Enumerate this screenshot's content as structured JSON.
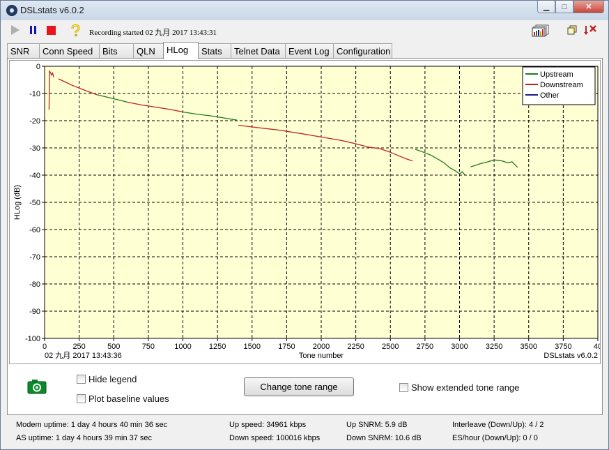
{
  "window": {
    "title": "DSLstats v6.0.2",
    "controls": {
      "minimize": "▁",
      "maximize": "□",
      "close": "✕"
    }
  },
  "toolbar": {
    "recording_status": "Recording started 02 九月 2017 13:43:31",
    "icons": [
      "play-icon",
      "pause-icon",
      "stop-icon",
      "help-icon",
      "chart-icon",
      "restore-icon",
      "exit-icon"
    ],
    "colors": {
      "pause": "#1414b4",
      "stop": "#e8161c",
      "play": "#b0b0b0"
    }
  },
  "tabs": [
    {
      "label": "SNR"
    },
    {
      "label": "Conn Speed"
    },
    {
      "label": "Bits"
    },
    {
      "label": "QLN"
    },
    {
      "label": "HLog",
      "active": true
    },
    {
      "label": "Stats"
    },
    {
      "label": "Telnet Data"
    },
    {
      "label": "Event Log"
    },
    {
      "label": "Configuration"
    }
  ],
  "chart_data": {
    "type": "line",
    "title": "",
    "xlabel": "Tone number",
    "ylabel": "HLog (dB)",
    "xlim": [
      0,
      4000
    ],
    "ylim": [
      -100,
      0
    ],
    "x_ticks": [
      "0",
      "250",
      "500",
      "750",
      "1000",
      "1250",
      "1500",
      "1750",
      "2000",
      "2250",
      "2500",
      "2750",
      "3000",
      "3250",
      "3500",
      "3750",
      "40"
    ],
    "y_ticks": [
      "0",
      "-10",
      "-20",
      "-30",
      "-40",
      "-50",
      "-60",
      "-70",
      "-80",
      "-90",
      "-100"
    ],
    "grid": true,
    "legend_position": "top-right",
    "footer_left": "02 九月 2017 13:43:36",
    "footer_right": "DSLstats v6.0.2",
    "background": "#ffffd4",
    "series": [
      {
        "name": "Upstream",
        "color": "#1f7a1f",
        "segments": [
          [
            [
              380,
              -10.5
            ],
            [
              450,
              -11.3
            ],
            [
              530,
              -12.3
            ],
            [
              600,
              -13.2
            ]
          ],
          [
            [
              1000,
              -16.8
            ],
            [
              1100,
              -17.6
            ],
            [
              1200,
              -18.2
            ],
            [
              1300,
              -19.0
            ],
            [
              1390,
              -19.8
            ]
          ],
          [
            [
              2680,
              -30.5
            ],
            [
              2720,
              -31.2
            ],
            [
              2790,
              -32.6
            ],
            [
              2850,
              -34.3
            ],
            [
              2890,
              -35.6
            ],
            [
              2930,
              -37.3
            ],
            [
              2970,
              -38.4
            ],
            [
              3000,
              -39.5
            ],
            [
              3020,
              -38.8
            ],
            [
              3040,
              -40.0
            ]
          ],
          [
            [
              3080,
              -37.0
            ],
            [
              3150,
              -35.8
            ],
            [
              3200,
              -35.2
            ],
            [
              3250,
              -34.4
            ],
            [
              3300,
              -34.7
            ],
            [
              3350,
              -35.5
            ],
            [
              3380,
              -35.1
            ],
            [
              3420,
              -37.2
            ]
          ]
        ]
      },
      {
        "name": "Downstream",
        "color": "#c0211f",
        "segments": [
          [
            [
              32,
              -16
            ],
            [
              36,
              -1.8
            ],
            [
              42,
              -2.2
            ],
            [
              50,
              -3.2
            ],
            [
              58,
              -2.5
            ],
            [
              66,
              -4.0
            ]
          ],
          [
            [
              100,
              -4.6
            ],
            [
              150,
              -5.8
            ],
            [
              200,
              -7.0
            ],
            [
              250,
              -8.0
            ],
            [
              300,
              -9.0
            ],
            [
              380,
              -10.5
            ]
          ],
          [
            [
              600,
              -13.2
            ],
            [
              700,
              -14.2
            ],
            [
              800,
              -15.0
            ],
            [
              900,
              -15.8
            ],
            [
              1000,
              -16.8
            ]
          ],
          [
            [
              1400,
              -21.7
            ],
            [
              1550,
              -22.6
            ],
            [
              1700,
              -23.5
            ],
            [
              1850,
              -24.7
            ],
            [
              2000,
              -26.0
            ],
            [
              2150,
              -27.3
            ],
            [
              2250,
              -28.5
            ],
            [
              2350,
              -29.8
            ],
            [
              2420,
              -30.2
            ],
            [
              2500,
              -31.6
            ],
            [
              2560,
              -32.9
            ],
            [
              2620,
              -34.1
            ],
            [
              2660,
              -34.8
            ]
          ]
        ]
      },
      {
        "name": "Other",
        "color": "#1a1a8c",
        "segments": []
      }
    ]
  },
  "controls": {
    "camera_icon": "camera-icon",
    "hide_legend": "Hide legend",
    "plot_baseline": "Plot baseline values",
    "change_tone_range": "Change tone range",
    "show_extended": "Show extended tone range"
  },
  "status": {
    "modem_uptime": "Modem uptime: 1 day 4 hours 40 min 36 sec",
    "as_uptime": "AS uptime: 1 day 4 hours 39 min 37 sec",
    "up_speed": "Up speed: 34961 kbps",
    "down_speed": "Down speed: 100016 kbps",
    "up_snrm": "Up SNRM: 5.9 dB",
    "down_snrm": "Down SNRM: 10.6 dB",
    "interleave": "Interleave (Down/Up): 4 / 2",
    "es_hour": "ES/hour (Down/Up): 0 / 0"
  }
}
